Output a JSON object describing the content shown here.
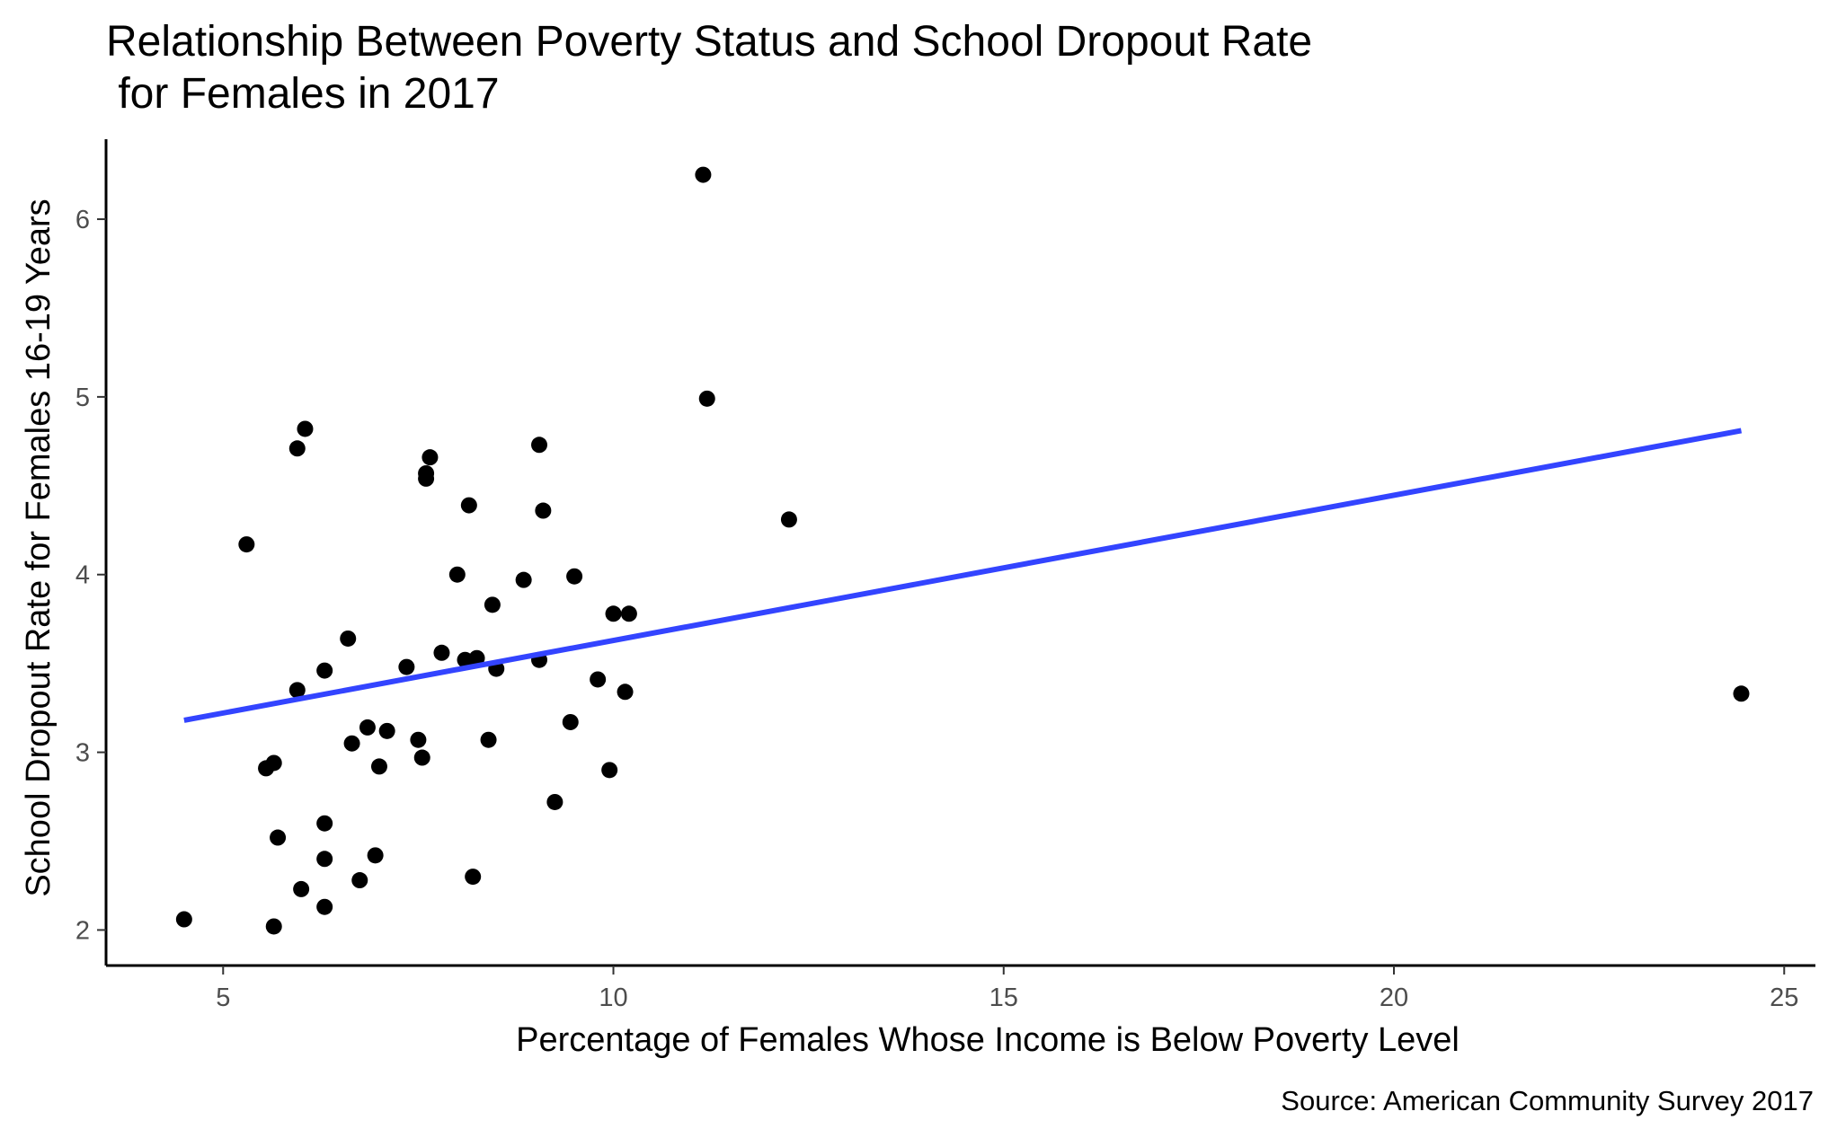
{
  "chart_data": {
    "type": "scatter",
    "title": "Relationship Between Poverty Status and School Dropout Rate\n for Females in 2017",
    "xlabel": "Percentage of Females Whose Income is Below Poverty Level",
    "ylabel": "School Dropout Rate for Females 16-19 Years",
    "caption": "Source: American Community Survey 2017",
    "xlim": [
      3.5,
      25.4
    ],
    "ylim": [
      1.8,
      6.45
    ],
    "xticks": [
      5,
      10,
      15,
      20,
      25
    ],
    "yticks": [
      2,
      3,
      4,
      5,
      6
    ],
    "xtick_labels": [
      "5",
      "10",
      "15",
      "20",
      "25"
    ],
    "ytick_labels": [
      "2",
      "3",
      "4",
      "5",
      "6"
    ],
    "grid": false,
    "legend": "none",
    "point_color": "#000000",
    "trend_color": "#3344ff",
    "trend_line": {
      "x": [
        4.5,
        24.45
      ],
      "y": [
        3.18,
        4.81
      ]
    },
    "points": [
      {
        "x": 4.5,
        "y": 2.06
      },
      {
        "x": 5.3,
        "y": 4.17
      },
      {
        "x": 5.55,
        "y": 2.91
      },
      {
        "x": 5.65,
        "y": 2.94
      },
      {
        "x": 5.65,
        "y": 2.02
      },
      {
        "x": 5.7,
        "y": 2.52
      },
      {
        "x": 5.95,
        "y": 3.35
      },
      {
        "x": 5.95,
        "y": 4.71
      },
      {
        "x": 6.05,
        "y": 4.82
      },
      {
        "x": 6.0,
        "y": 2.23
      },
      {
        "x": 6.3,
        "y": 3.46
      },
      {
        "x": 6.3,
        "y": 2.6
      },
      {
        "x": 6.3,
        "y": 2.4
      },
      {
        "x": 6.3,
        "y": 2.13
      },
      {
        "x": 6.6,
        "y": 3.64
      },
      {
        "x": 6.65,
        "y": 3.05
      },
      {
        "x": 6.75,
        "y": 2.28
      },
      {
        "x": 6.85,
        "y": 3.14
      },
      {
        "x": 6.95,
        "y": 2.42
      },
      {
        "x": 7.0,
        "y": 2.92
      },
      {
        "x": 7.1,
        "y": 3.12
      },
      {
        "x": 7.35,
        "y": 3.48
      },
      {
        "x": 7.5,
        "y": 3.07
      },
      {
        "x": 7.55,
        "y": 2.97
      },
      {
        "x": 7.6,
        "y": 4.57
      },
      {
        "x": 7.6,
        "y": 4.54
      },
      {
        "x": 7.65,
        "y": 4.66
      },
      {
        "x": 7.8,
        "y": 3.56
      },
      {
        "x": 8.0,
        "y": 4.0
      },
      {
        "x": 8.1,
        "y": 3.52
      },
      {
        "x": 8.15,
        "y": 4.39
      },
      {
        "x": 8.2,
        "y": 2.3
      },
      {
        "x": 8.25,
        "y": 3.53
      },
      {
        "x": 8.4,
        "y": 3.07
      },
      {
        "x": 8.45,
        "y": 3.83
      },
      {
        "x": 8.5,
        "y": 3.47
      },
      {
        "x": 8.85,
        "y": 3.97
      },
      {
        "x": 9.05,
        "y": 4.73
      },
      {
        "x": 9.05,
        "y": 3.52
      },
      {
        "x": 9.1,
        "y": 4.36
      },
      {
        "x": 9.25,
        "y": 2.72
      },
      {
        "x": 9.45,
        "y": 3.17
      },
      {
        "x": 9.5,
        "y": 3.99
      },
      {
        "x": 9.8,
        "y": 3.41
      },
      {
        "x": 9.95,
        "y": 2.9
      },
      {
        "x": 10.0,
        "y": 3.78
      },
      {
        "x": 10.15,
        "y": 3.34
      },
      {
        "x": 10.2,
        "y": 3.78
      },
      {
        "x": 11.15,
        "y": 6.25
      },
      {
        "x": 11.2,
        "y": 4.99
      },
      {
        "x": 12.25,
        "y": 4.31
      },
      {
        "x": 24.45,
        "y": 3.33
      }
    ]
  }
}
